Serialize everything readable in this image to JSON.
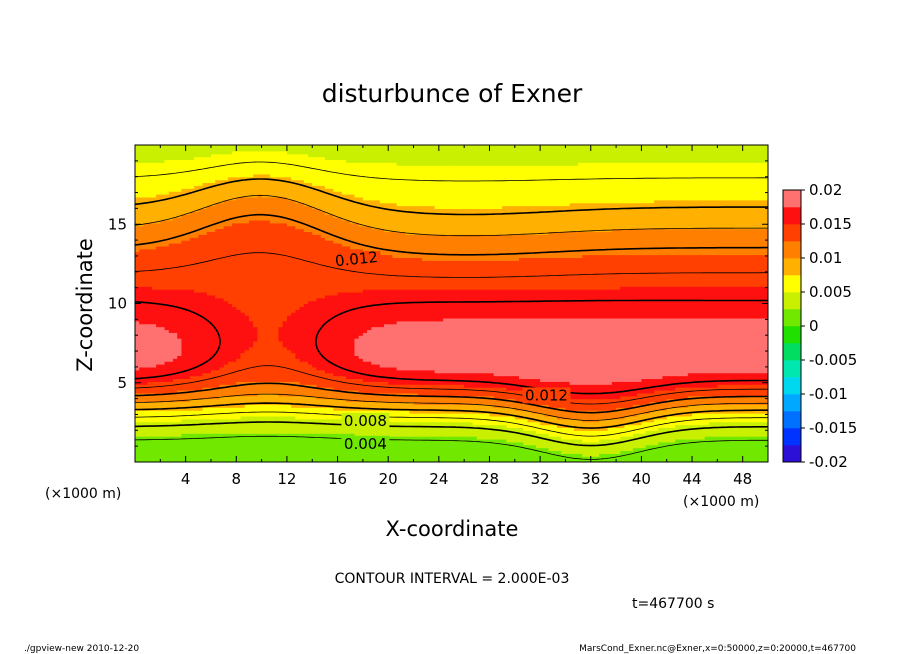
{
  "chart_data": {
    "type": "heatmap",
    "title": "disturbunce of Exner",
    "xlabel": "X-coordinate",
    "ylabel": "Z-coordinate",
    "x_unit": "(×1000 m)",
    "z_unit": "(×1000 m)",
    "xlim": [
      0,
      50
    ],
    "ylim": [
      0,
      20
    ],
    "x_ticks": [
      "4",
      "8",
      "12",
      "16",
      "20",
      "24",
      "28",
      "32",
      "36",
      "40",
      "44",
      "48"
    ],
    "y_ticks": [
      "5",
      "10",
      "15"
    ],
    "contour_interval_text": "CONTOUR INTERVAL = 2.000E-03",
    "contour_labels": [
      {
        "text": "0.012",
        "x": 17.5,
        "z": 12.8
      },
      {
        "text": "0.012",
        "x": 32.5,
        "z": 4.2
      },
      {
        "text": "0.008",
        "x": 18.2,
        "z": 2.6
      },
      {
        "text": "0.004",
        "x": 18.2,
        "z": 1.15
      }
    ],
    "colorbar": {
      "ticks": [
        "0.02",
        "0.015",
        "0.01",
        "0.005",
        "0",
        "-0.005",
        "-0.01",
        "-0.015",
        "-0.02"
      ],
      "levels": [
        -0.02,
        -0.0175,
        -0.015,
        -0.0125,
        -0.01,
        -0.0075,
        -0.005,
        -0.0025,
        0,
        0.0025,
        0.005,
        0.0075,
        0.01,
        0.0125,
        0.015,
        0.0175,
        0.02
      ],
      "colors": [
        "#6a00a8",
        "#2d10d8",
        "#0033ff",
        "#0070ff",
        "#00a8ff",
        "#00d8f0",
        "#00e8b0",
        "#00dd60",
        "#20e000",
        "#70e800",
        "#c8f000",
        "#ffff00",
        "#ffb000",
        "#ff8000",
        "#ff4000",
        "#ff1010",
        "#ff7070",
        "#ff9c9c"
      ]
    },
    "time_text": "t=467700 s"
  },
  "footer": {
    "left": "./gpview-new  2010-12-20",
    "right": "MarsCond_Exner.nc@Exner,x=0:50000,z=0:20000,t=467700"
  }
}
